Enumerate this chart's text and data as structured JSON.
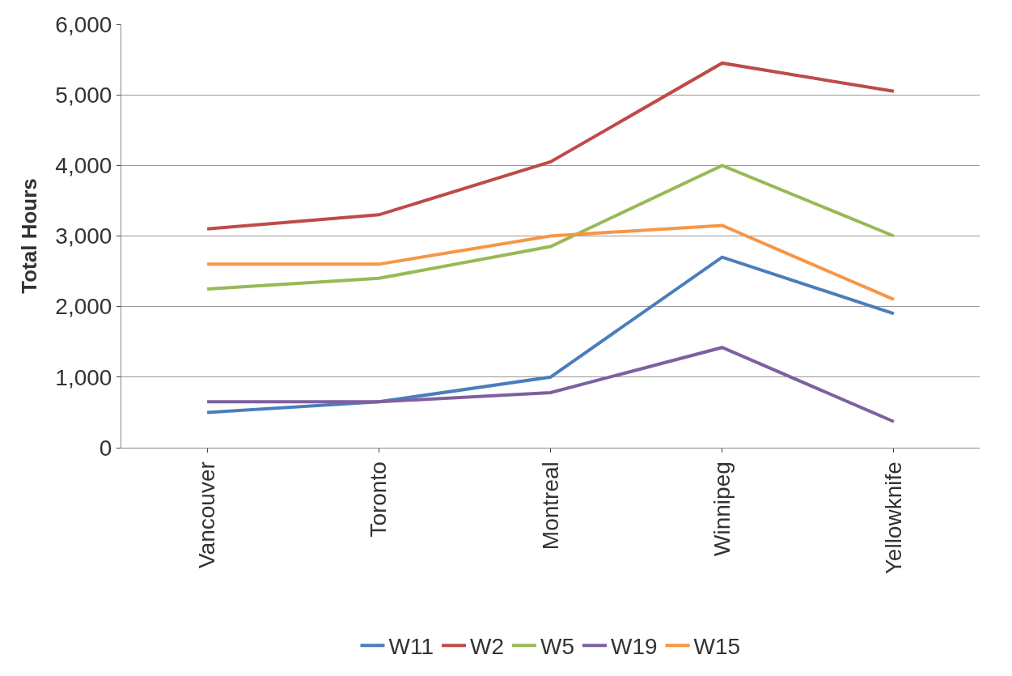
{
  "chart_data": {
    "type": "line",
    "ylabel": "Total Hours",
    "categories": [
      "Vancouver",
      "Toronto",
      "Montreal",
      "Winnipeg",
      "Yellowknife"
    ],
    "series": [
      {
        "name": "W11",
        "color": "#4a7ebb",
        "values": [
          500,
          650,
          1000,
          2700,
          1900
        ]
      },
      {
        "name": "W2",
        "color": "#be4b48",
        "values": [
          3100,
          3300,
          4050,
          5450,
          5050
        ]
      },
      {
        "name": "W5",
        "color": "#98b954",
        "values": [
          2250,
          2400,
          2850,
          4000,
          3000
        ]
      },
      {
        "name": "W19",
        "color": "#7d60a0",
        "values": [
          650,
          650,
          780,
          1420,
          370
        ]
      },
      {
        "name": "W15",
        "color": "#f79646",
        "values": [
          2600,
          2600,
          3000,
          3150,
          2100
        ]
      }
    ],
    "ylim": [
      0,
      6000
    ],
    "yticks": [
      0,
      {
        "value": 1000,
        "label": "1,000"
      },
      {
        "value": 2000,
        "label": "2,000"
      },
      {
        "value": 3000,
        "label": "3,000"
      },
      {
        "value": 4000,
        "label": "4,000"
      },
      {
        "value": 5000,
        "label": "5,000"
      },
      {
        "value": 6000,
        "label": "6,000"
      }
    ],
    "grid": "y",
    "legend": "bottom",
    "marker": "none",
    "line_style": "solid"
  }
}
